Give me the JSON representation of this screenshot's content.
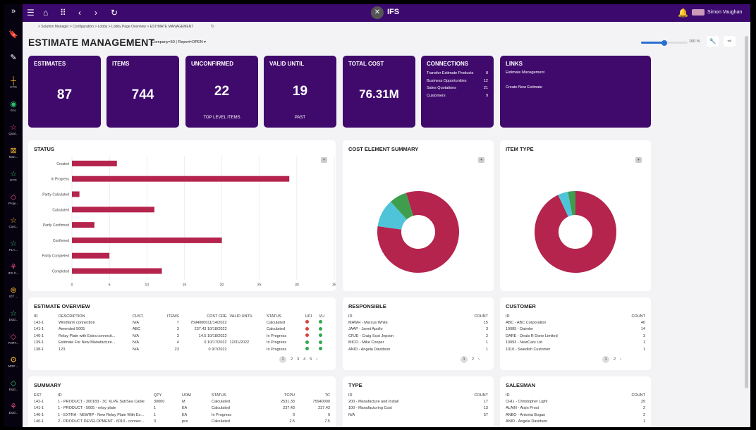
{
  "topbar": {
    "logo": "IFS",
    "user": "Simon Vaughan"
  },
  "sidebar": [
    {
      "icon": "»",
      "label": ""
    },
    {
      "icon": "🔖",
      "label": ""
    },
    {
      "icon": "✎",
      "label": ""
    },
    {
      "icon": "┼",
      "label": "CTO"
    },
    {
      "icon": "◉",
      "label": "Eco"
    },
    {
      "icon": "☆",
      "label": "Qual..."
    },
    {
      "icon": "⊠",
      "label": "Man..."
    },
    {
      "icon": "☆",
      "label": "ETO"
    },
    {
      "icon": "◇",
      "label": "Proje..."
    },
    {
      "icon": "☆",
      "label": "Cust..."
    },
    {
      "icon": "☆",
      "label": "PLA..."
    },
    {
      "icon": "⚘",
      "label": "IFS C..."
    },
    {
      "icon": "⊛",
      "label": "IOT ..."
    },
    {
      "icon": "☆",
      "label": "Estd..."
    },
    {
      "icon": "◇",
      "label": "PART..."
    },
    {
      "icon": "⚙",
      "label": "MRP ..."
    },
    {
      "icon": "◇",
      "label": "Estd..."
    },
    {
      "icon": "⚘",
      "label": "Estd..."
    }
  ],
  "breadcrumb": "> Solution Manager  > Configuration  > Lobby  > Lobby Page Overview  > ESTIMATE MANAGEMENT",
  "page": {
    "title": "ESTIMATE MANAGEMENT",
    "context": "Company=50 | Report=OPEN ▾",
    "zoom": "100 %",
    "zoom_level": 0.5
  },
  "cards": [
    {
      "title": "ESTIMATES",
      "value": "87",
      "sub": ""
    },
    {
      "title": "ITEMS",
      "value": "744",
      "sub": ""
    },
    {
      "title": "UNCONFIRMED",
      "value": "22",
      "sub": "TOP LEVEL ITEMS"
    },
    {
      "title": "VALID UNTIL",
      "value": "19",
      "sub": "PAST"
    },
    {
      "title": "TOTAL COST",
      "value": "76.31M",
      "sub": ""
    }
  ],
  "connections": {
    "title": "CONNECTIONS",
    "items": [
      {
        "label": "Transfer Estimate Products",
        "count": "8"
      },
      {
        "label": "Business Opportunities",
        "count": "12"
      },
      {
        "label": "Sales Quotations",
        "count": "21"
      },
      {
        "label": "Customers",
        "count": "9"
      }
    ]
  },
  "links": {
    "title": "LINKS",
    "items": [
      "Estimate Management",
      "Create New Estimate"
    ]
  },
  "status_panel": {
    "title": "STATUS"
  },
  "cost_panel": {
    "title": "COST ELEMENT SUMMARY"
  },
  "itemtype_panel": {
    "title": "ITEM TYPE"
  },
  "chart_data": [
    {
      "type": "bar",
      "orientation": "horizontal",
      "title": "STATUS",
      "categories": [
        "Created",
        "In Progress",
        "Partly Calculated",
        "Calculated",
        "Partly Confirmed",
        "Confirmed",
        "Partly Completed",
        "Completed"
      ],
      "values": [
        6,
        29,
        1,
        11,
        3,
        20,
        5,
        12
      ],
      "xlim": [
        0,
        35
      ],
      "xticks": [
        "0",
        "5",
        "10",
        "15",
        "20",
        "25",
        "30",
        "35"
      ],
      "color": "#b4244d",
      "grid": true
    },
    {
      "type": "pie",
      "donut": true,
      "title": "COST ELEMENT SUMMARY",
      "slices": [
        {
          "value": 0.82,
          "color": "#b4244d"
        },
        {
          "value": 0.11,
          "color": "#4fc4d8"
        },
        {
          "value": 0.07,
          "color": "#3f9d4e"
        }
      ]
    },
    {
      "type": "pie",
      "donut": true,
      "title": "ITEM TYPE",
      "slices": [
        {
          "value": 0.93,
          "color": "#b4244d"
        },
        {
          "value": 0.04,
          "color": "#4fc4d8"
        },
        {
          "value": 0.03,
          "color": "#3f9d4e"
        }
      ]
    }
  ],
  "overview": {
    "title": "ESTIMATE OVERVIEW",
    "headers": [
      "ID",
      "DESCRIPTION",
      "CUST.",
      "ITEMS",
      "COST CRE",
      "VALID UNTIL",
      "STATUS",
      "UCI",
      "VU"
    ],
    "rows": [
      {
        "id": "142-1",
        "desc": "Windfarm connection",
        "cust": "N/A",
        "items": "7",
        "cost": "7594000011/14/2022",
        "valid": "",
        "status": "Calculated",
        "uci": "#d9403a",
        "vu": "#2fa84f"
      },
      {
        "id": "141-1",
        "desc": "Amended 5005",
        "cust": "ABC",
        "items": "3",
        "cost": "237.43 10/18/2022",
        "valid": "",
        "status": "Calculated",
        "uci": "#d9403a",
        "vu": "#2fa84f"
      },
      {
        "id": "140-1",
        "desc": "Relay Plate with Extra connecti...",
        "cust": "N/A",
        "items": "3",
        "cost": "14.5 10/18/2022",
        "valid": "",
        "status": "In Progress",
        "uci": "#d9403a",
        "vu": "#2fa84f"
      },
      {
        "id": "139-1",
        "desc": "Estimate For New Manufacture...",
        "cust": "N/A",
        "items": "4",
        "cost": "0 10/17/2022",
        "valid": "12/31/2022",
        "status": "In Progress",
        "uci": "#2fa84f",
        "vu": "#2fa84f"
      },
      {
        "id": "138-1",
        "desc": "123",
        "cust": "N/A",
        "items": "23",
        "cost": "0 9/7/2022",
        "valid": "",
        "status": "In Progress",
        "uci": "#2fa84f",
        "vu": "#2fa84f"
      }
    ],
    "pages": [
      "1",
      "2",
      "3",
      "4",
      "5",
      "›"
    ]
  },
  "responsible": {
    "title": "RESPONSIBLE",
    "headers": [
      "ID",
      "COUNT"
    ],
    "rows": [
      [
        "MAWH - Marcus White",
        "15"
      ],
      [
        "JAAP - Janet Apollo",
        "3"
      ],
      [
        "CRJE - Craig Scot Jepson",
        "2"
      ],
      [
        "MICO - Mike Cooper",
        "1"
      ],
      [
        "ANID - Angela Davidson",
        "1"
      ]
    ],
    "pages": [
      "1",
      "2",
      "›"
    ]
  },
  "customer": {
    "title": "CUSTOMER",
    "headers": [
      "ID",
      "COUNT"
    ],
    "rows": [
      [
        "ABC - ABC Corporation",
        "40"
      ],
      [
        "10085 - Daimler",
        "14"
      ],
      [
        "DARE - Deals R Done Limited",
        "3"
      ],
      [
        "10093 - NewCars Ltd",
        "1"
      ],
      [
        "1010 - Swedish Customer",
        "1"
      ]
    ],
    "pages": [
      "1",
      "2",
      "›"
    ]
  },
  "summary": {
    "title": "SUMMARY",
    "headers": [
      "EST",
      "ID",
      "QTY",
      "UOM",
      "STATUS",
      "TCPU",
      "TC"
    ],
    "rows": [
      [
        "142-1",
        "1 - PRODUCT - 300183 · 3C XLPE SubSea Cable",
        "30000",
        "M",
        "Calculated",
        "2531.33",
        "75940000"
      ],
      [
        "141-1",
        "1 - PRODUCT - 5005 - relay plate",
        "1",
        "EA",
        "Calculated",
        "237.43",
        "237.43"
      ],
      [
        "140-1",
        "1 - EXTRA - NEWRP - New Relay Plate With Ex...",
        "1",
        "EA",
        "In Progress",
        "0",
        "0"
      ],
      [
        "140-1",
        "2 - PRODUCT DEVELOPMENT - 6010 - connec...",
        "3",
        "pcs",
        "Calculated",
        "2.5",
        "7.5"
      ]
    ]
  },
  "type": {
    "title": "TYPE",
    "headers": [
      "ID",
      "COUNT"
    ],
    "rows": [
      [
        "200 - Manufacture and Install",
        "17"
      ],
      [
        "100 - Manufacturing Cost",
        "13"
      ],
      [
        "N/A",
        "57"
      ]
    ]
  },
  "salesman": {
    "title": "SALESMAN",
    "headers": [
      "ID",
      "COUNT"
    ],
    "rows": [
      [
        "CHLI - Christopher Light",
        "29"
      ],
      [
        "ALAIN - Alain Prost",
        "2"
      ],
      [
        "ANBO - Antonia Bogan",
        "2"
      ],
      [
        "ANID - Angela Davidson",
        "1"
      ]
    ]
  }
}
